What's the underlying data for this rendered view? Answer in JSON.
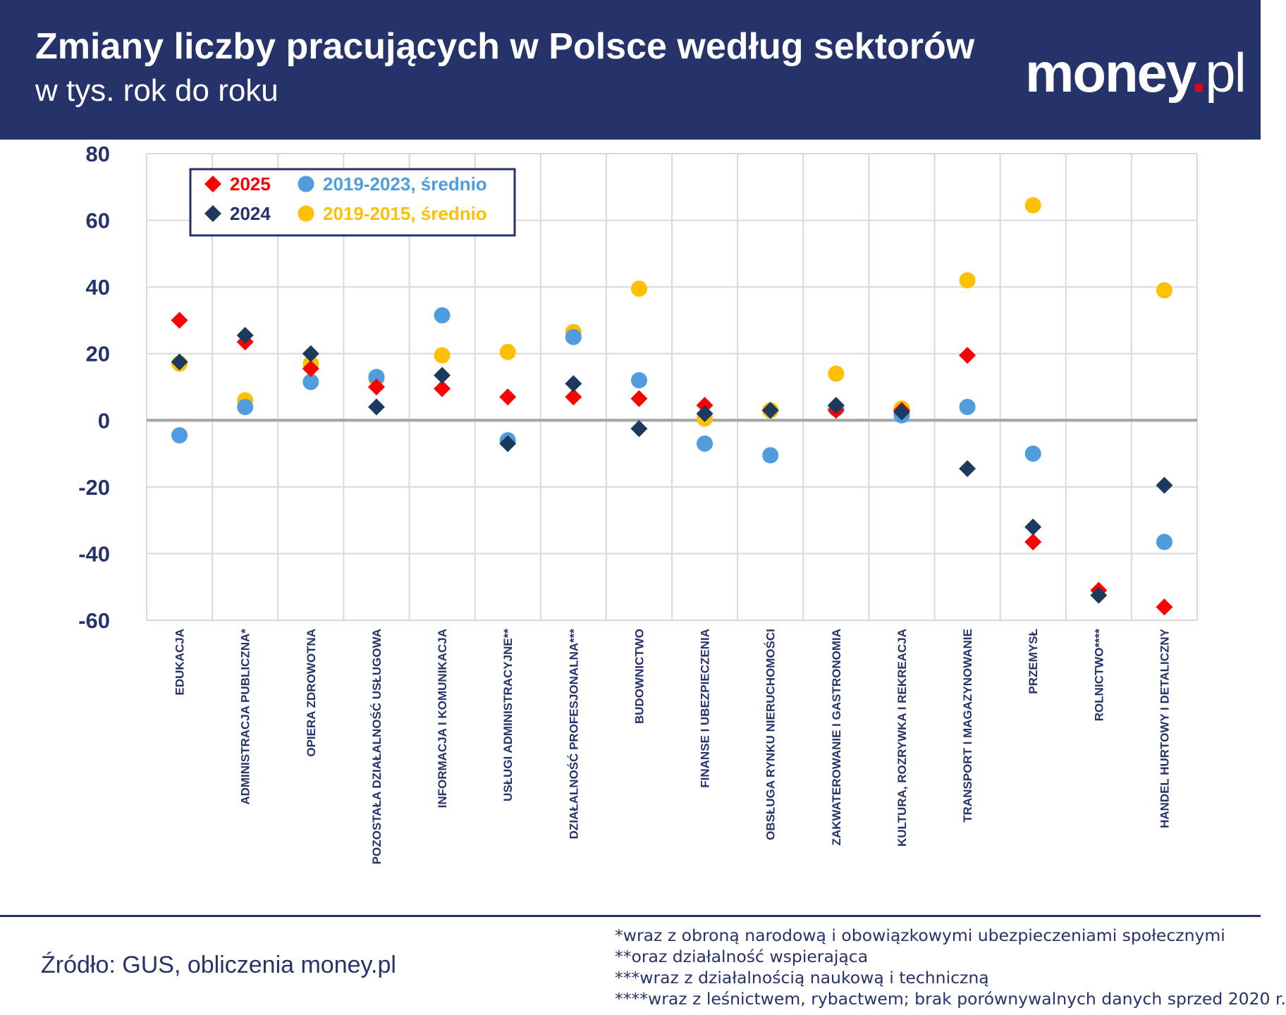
{
  "header": {
    "title": "Zmiany liczby pracujących w Polsce według sektorów",
    "subtitle": "w tys. rok do roku",
    "logo_main": "money",
    "logo_dot": ".",
    "logo_tld": "pl"
  },
  "footer": {
    "source": "Źródło: GUS, obliczenia money.pl",
    "notes": [
      "*wraz z obroną narodową i obowiązkowymi ubezpieczeniami społecznymi",
      "**oraz działalność wspierająca",
      "***wraz z działalnością naukową i techniczną",
      "****wraz z leśnictwem, rybactwem; brak porównywalnych danych sprzed 2020 r."
    ]
  },
  "colors": {
    "header_bg": "#26326a",
    "navy_text": "#26326a",
    "grid": "#d9d9d9",
    "zero_line": "#a6a6a6",
    "series_2025": "#ff0000",
    "series_2024": "#1c3a5e",
    "series_2019_2023": "#4f9ddf",
    "series_2019_2015": "#ffc000"
  },
  "chart_data": {
    "type": "scatter",
    "categories": [
      "EDUKACJA",
      "ADMINISTRACJA PUBLICZNA*",
      "OPIERA ZDROWOTNA",
      "POZOSTAŁA DZIAŁALNOŚĆ USŁUGOWA",
      "INFORMACJA I KOMUNIKACJA",
      "USŁUGI ADMINISTRACYJNE**",
      "DZIAŁALNOŚĆ PROFESJONALNA***",
      "BUDOWNICTWO",
      "FINANSE I UBEZPIECZENIA",
      "OBSŁUGA RYNKU NIERUCHOMOŚCI",
      "ZAKWATEROWANIE I GASTRONOMIA",
      "KULTURA, ROZRYWKA I REKREACJA",
      "TRANSPORT I MAGAZYNOWANIE",
      "PRZEMYSŁ",
      "ROLNICTWO****",
      "HANDEL HURTOWY I DETALICZNY"
    ],
    "ylim": [
      -60,
      80
    ],
    "yticks": [
      "80",
      "60",
      "40",
      "20",
      "0",
      "-20",
      "-40",
      "-60"
    ],
    "ytick_values": [
      80,
      60,
      40,
      20,
      0,
      -20,
      -40,
      -60
    ],
    "grid": true,
    "legend_position": "top-left",
    "series": [
      {
        "name": "2025",
        "marker": "diamond",
        "color": "#ff0000",
        "values": [
          30,
          23.5,
          15.5,
          10,
          9.5,
          7,
          7,
          6.5,
          4.5,
          3,
          3,
          3,
          19.5,
          -36.5,
          -51,
          -56
        ]
      },
      {
        "name": "2024",
        "marker": "diamond",
        "color": "#1c3a5e",
        "values": [
          17.5,
          25.5,
          20,
          4,
          13.5,
          -7,
          11,
          -2.5,
          2,
          3,
          4.5,
          2.5,
          -14.5,
          -32,
          -52.5,
          -19.5
        ]
      },
      {
        "name": "2019-2023, średnio",
        "marker": "circle",
        "color": "#4f9ddf",
        "values": [
          -4.5,
          4,
          11.5,
          13,
          31.5,
          -6,
          25,
          12,
          -7,
          -10.5,
          3.5,
          1.5,
          4,
          -10,
          null,
          -36.5
        ]
      },
      {
        "name": "2019-2015, średnio",
        "marker": "circle",
        "color": "#ffc000",
        "values": [
          17,
          6,
          17,
          12.5,
          19.5,
          20.5,
          26.5,
          39.5,
          0.5,
          3,
          14,
          3.5,
          42,
          64.5,
          null,
          39
        ]
      }
    ]
  }
}
